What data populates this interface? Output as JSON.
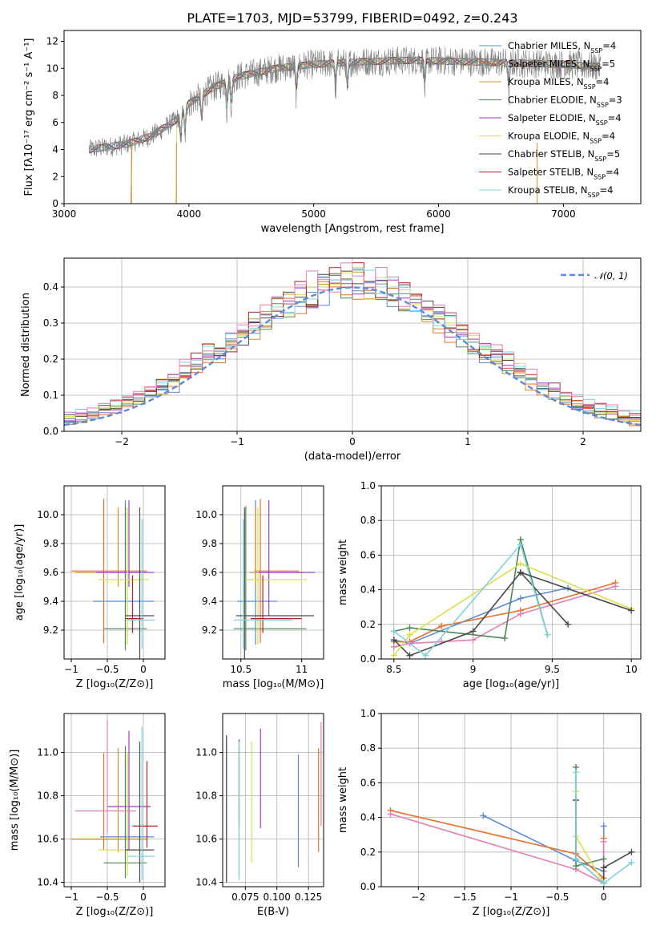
{
  "figure_title": "PLATE=1703, MJD=53799, FIBERID=0492, z=0.243",
  "colors": {
    "Chabrier MILES": "#5b8bd9",
    "Salpeter MILES": "#e8702a",
    "Kroupa MILES": "#c8902e",
    "Chabrier ELODIE": "#4e8a58",
    "Salpeter ELODIE": "#a43bc2",
    "Kroupa ELODIE": "#dede4a",
    "Chabrier STELIB": "#4a4a4a",
    "Salpeter STELIB": "#b22222",
    "Kroupa STELIB": "#7fd3dc",
    "Pink": "#e57fb4",
    "Data": "#7f7f7f",
    "Normal": "#5b8bd9"
  },
  "chart_data": [
    {
      "id": "spectrum",
      "type": "line",
      "title": "PLATE=1703, MJD=53799, FIBERID=0492, z=0.243",
      "xlabel": "wavelength [Angstrom, rest frame]",
      "ylabel": "Flux [fλ10⁻¹⁷ erg cm⁻² s⁻¹ A⁻¹]",
      "xlim": [
        3000,
        7620
      ],
      "ylim": [
        0,
        12.8
      ],
      "xticks": [
        3000,
        4000,
        5000,
        6000,
        7000
      ],
      "yticks": [
        0,
        2,
        4,
        6,
        8,
        10,
        12
      ],
      "legend_position": "right",
      "legend": [
        {
          "label": "Chabrier MILES, N",
          "sub": "SSP",
          "tail": "=4",
          "color": "#5b8bd9"
        },
        {
          "label": "Salpeter MILES, N",
          "sub": "SSP",
          "tail": "=5",
          "color": "#e8702a"
        },
        {
          "label": "Kroupa MILES, N",
          "sub": "SSP",
          "tail": "=4",
          "color": "#c8902e"
        },
        {
          "label": "Chabrier ELODIE, N",
          "sub": "SSP",
          "tail": "=3",
          "color": "#4e8a58"
        },
        {
          "label": "Salpeter ELODIE, N",
          "sub": "SSP",
          "tail": "=4",
          "color": "#a43bc2"
        },
        {
          "label": "Kroupa ELODIE, N",
          "sub": "SSP",
          "tail": "=4",
          "color": "#dede4a"
        },
        {
          "label": "Chabrier STELIB, N",
          "sub": "SSP",
          "tail": "=5",
          "color": "#4a4a4a"
        },
        {
          "label": "Salpeter STELIB, N",
          "sub": "SSP",
          "tail": "=4",
          "color": "#b22222"
        },
        {
          "label": "Kroupa STELIB, N",
          "sub": "SSP",
          "tail": "=4",
          "color": "#7fd3dc"
        }
      ],
      "continuum": [
        [
          3200,
          4.0
        ],
        [
          3500,
          4.4
        ],
        [
          3700,
          5.0
        ],
        [
          3900,
          6.2
        ],
        [
          4000,
          7.4
        ],
        [
          4200,
          8.6
        ],
        [
          4400,
          9.4
        ],
        [
          4700,
          10.0
        ],
        [
          5000,
          10.3
        ],
        [
          5400,
          10.5
        ],
        [
          5800,
          10.6
        ],
        [
          6200,
          10.5
        ],
        [
          6600,
          10.4
        ],
        [
          7000,
          10.3
        ],
        [
          7300,
          10.1
        ]
      ],
      "data_noise": 1.1,
      "data_xrange": [
        3200,
        7300
      ],
      "model_xrange": [
        3200,
        7300
      ],
      "model_cuts": [
        {
          "series": "Salpeter MILES",
          "start": 3540
        },
        {
          "series": "Kroupa MILES",
          "start": 3540
        },
        {
          "series": "Kroupa ELODIE",
          "start": 3900
        }
      ],
      "absorption_lines": [
        3934,
        3969,
        4102,
        4304,
        4341,
        4861,
        5175,
        5270,
        5890,
        6563
      ]
    },
    {
      "id": "residuals",
      "type": "histogram",
      "xlabel": "(data-model)/error",
      "ylabel": "Normed distribution",
      "xlim": [
        -2.5,
        2.5
      ],
      "ylim": [
        0,
        0.48
      ],
      "xticks": [
        -2,
        -1,
        0,
        1,
        2
      ],
      "yticks": [
        0.0,
        0.1,
        0.2,
        0.3,
        0.4
      ],
      "bin_width": 0.1,
      "legend_label": "𝒩(0, 1)",
      "legend_position": "top-right",
      "series_colors": [
        "#5b8bd9",
        "#e8702a",
        "#c8902e",
        "#4e8a58",
        "#a43bc2",
        "#dede4a",
        "#4a4a4a",
        "#b22222",
        "#7fd3dc",
        "#e57fb4"
      ],
      "normal_curve": {
        "mean": 0,
        "sigma": 1
      }
    },
    {
      "id": "age_vs_Z",
      "type": "errorbar",
      "xlabel": "Z [log₁₀(Z/Z⊙)]",
      "ylabel": "age  [log₁₀(age/yr)]",
      "xlim": [
        -1.1,
        0.3
      ],
      "ylim": [
        9.0,
        10.2
      ],
      "xticks": [
        -1.0,
        -0.5,
        0.0
      ],
      "yticks": [
        9.2,
        9.4,
        9.6,
        9.8,
        10.0
      ],
      "points": [
        {
          "series": "Chabrier MILES",
          "x": -0.25,
          "xerr": [
            0.45,
            0.4
          ],
          "y": 9.4,
          "yerr": [
            0.3,
            0.7
          ]
        },
        {
          "series": "Salpeter MILES",
          "x": -0.55,
          "xerr": [
            0.45,
            0.6
          ],
          "y": 9.61,
          "yerr": [
            0.5,
            0.5
          ]
        },
        {
          "series": "Kroupa MILES",
          "x": -0.35,
          "xerr": [
            0.6,
            0.35
          ],
          "y": 9.6,
          "yerr": [
            0.1,
            0.45
          ]
        },
        {
          "series": "Chabrier ELODIE",
          "x": -0.25,
          "xerr": [
            0.3,
            0.3
          ],
          "y": 9.21,
          "yerr": [
            0.15,
            0.85
          ]
        },
        {
          "series": "Salpeter ELODIE",
          "x": -0.2,
          "xerr": [
            0.45,
            0.35
          ],
          "y": 9.6,
          "yerr": [
            0.1,
            0.5
          ]
        },
        {
          "series": "Kroupa ELODIE",
          "x": -0.22,
          "xerr": [
            0.4,
            0.3
          ],
          "y": 9.55,
          "yerr": [
            0.45,
            0.5
          ]
        },
        {
          "series": "Chabrier STELIB",
          "x": -0.05,
          "xerr": [
            0.2,
            0.2
          ],
          "y": 9.3,
          "yerr": [
            0.35,
            0.75
          ]
        },
        {
          "series": "Salpeter STELIB",
          "x": -0.15,
          "xerr": [
            0.1,
            0.15
          ],
          "y": 9.28,
          "yerr": [
            0.1,
            0.3
          ]
        },
        {
          "series": "Kroupa STELIB",
          "x": -0.02,
          "xerr": [
            0.2,
            0.18
          ],
          "y": 9.27,
          "yerr": [
            0.2,
            0.7
          ]
        }
      ]
    },
    {
      "id": "age_vs_mass",
      "type": "errorbar",
      "xlabel": "mass [log₁₀(M/M⊙)]",
      "ylabel": "",
      "xlim": [
        10.35,
        11.18
      ],
      "ylim": [
        9.0,
        10.2
      ],
      "xticks": [
        10.5,
        11.0
      ],
      "yticks": [
        9.2,
        9.4,
        9.6,
        9.8,
        10.0
      ],
      "points": [
        {
          "series": "Chabrier MILES",
          "x": 10.62,
          "xerr": [
            0.15,
            0.18
          ],
          "y": 9.4,
          "yerr": [
            0.3,
            0.7
          ]
        },
        {
          "series": "Salpeter MILES",
          "x": 10.66,
          "xerr": [
            0.05,
            0.32
          ],
          "y": 9.61,
          "yerr": [
            0.5,
            0.5
          ]
        },
        {
          "series": "Kroupa MILES",
          "x": 10.62,
          "xerr": [
            0.05,
            0.4
          ],
          "y": 9.6,
          "yerr": [
            0.1,
            0.45
          ]
        },
        {
          "series": "Chabrier ELODIE",
          "x": 10.54,
          "xerr": [
            0.1,
            0.5
          ],
          "y": 9.21,
          "yerr": [
            0.15,
            0.85
          ]
        },
        {
          "series": "Salpeter ELODIE",
          "x": 10.73,
          "xerr": [
            0.1,
            0.38
          ],
          "y": 9.6,
          "yerr": [
            0.3,
            0.5
          ]
        },
        {
          "series": "Kroupa ELODIE",
          "x": 10.64,
          "xerr": [
            0.1,
            0.4
          ],
          "y": 9.55,
          "yerr": [
            0.45,
            0.5
          ]
        },
        {
          "series": "Chabrier STELIB",
          "x": 10.53,
          "xerr": [
            0.07,
            0.57
          ],
          "y": 9.3,
          "yerr": [
            0.35,
            0.75
          ]
        },
        {
          "series": "Salpeter STELIB",
          "x": 10.68,
          "xerr": [
            0.1,
            0.32
          ],
          "y": 9.28,
          "yerr": [
            0.1,
            0.3
          ]
        },
        {
          "series": "Kroupa STELIB",
          "x": 10.52,
          "xerr": [
            0.08,
            0.4
          ],
          "y": 9.27,
          "yerr": [
            0.2,
            0.7
          ]
        }
      ]
    },
    {
      "id": "weight_vs_age",
      "type": "line",
      "xlabel": "age  [log₁₀(age/yr)]",
      "ylabel": "mass weight",
      "xlim": [
        8.42,
        10.06
      ],
      "ylim": [
        0,
        1.0
      ],
      "xticks": [
        8.5,
        9.0,
        9.5,
        10.0
      ],
      "yticks": [
        0.0,
        0.2,
        0.4,
        0.6,
        0.8,
        1.0
      ],
      "series": [
        {
          "name": "Chabrier MILES",
          "x": [
            8.5,
            8.6,
            9.3,
            9.6
          ],
          "y": [
            0.11,
            0.09,
            0.35,
            0.41
          ]
        },
        {
          "name": "Salpeter MILES",
          "x": [
            8.5,
            8.6,
            8.8,
            9.3,
            9.9
          ],
          "y": [
            0.1,
            0.1,
            0.19,
            0.28,
            0.44
          ]
        },
        {
          "name": "Pink",
          "x": [
            8.5,
            8.6,
            8.8,
            9.0,
            9.3,
            9.9
          ],
          "y": [
            0.07,
            0.09,
            0.1,
            0.11,
            0.26,
            0.42
          ]
        },
        {
          "name": "Chabrier ELODIE",
          "x": [
            8.5,
            8.6,
            9.2,
            9.3,
            9.47
          ],
          "y": [
            0.16,
            0.18,
            0.12,
            0.69,
            0.14
          ]
        },
        {
          "name": "Chabrier STELIB",
          "x": [
            8.5,
            8.6,
            9.0,
            9.3,
            9.6
          ],
          "y": [
            0.11,
            0.02,
            0.16,
            0.5,
            0.2
          ]
        },
        {
          "name": "Kroupa ELODIE",
          "x": [
            8.5,
            8.6,
            9.3,
            10.0
          ],
          "y": [
            0.02,
            0.14,
            0.55,
            0.29
          ]
        },
        {
          "name": "Kroupa STELIB",
          "x": [
            8.5,
            8.7,
            9.3,
            9.47
          ],
          "y": [
            0.16,
            0.02,
            0.66,
            0.14
          ]
        },
        {
          "name": "Chabrier STELIB",
          "x": [
            9.3,
            10.0
          ],
          "y": [
            0.5,
            0.28
          ]
        }
      ]
    },
    {
      "id": "mass_vs_Z",
      "type": "errorbar",
      "xlabel": "Z [log₁₀(Z/Z⊙)]",
      "ylabel": "mass [log₁₀(M/M⊙)]",
      "xlim": [
        -1.1,
        0.3
      ],
      "ylim": [
        10.38,
        11.18
      ],
      "xticks": [
        -1.0,
        -0.5,
        0.0
      ],
      "yticks": [
        10.4,
        10.6,
        10.8,
        11.0
      ],
      "points": [
        {
          "series": "Chabrier MILES",
          "x": -0.25,
          "xerr": [
            0.35,
            0.4
          ],
          "y": 10.61,
          "yerr": [
            0.1,
            0.35
          ]
        },
        {
          "series": "Salpeter MILES",
          "x": -0.55,
          "xerr": [
            0.45,
            0.6
          ],
          "y": 10.6,
          "yerr": [
            0.05,
            0.4
          ]
        },
        {
          "series": "Kroupa MILES",
          "x": -0.35,
          "xerr": [
            0.6,
            0.35
          ],
          "y": 10.6,
          "yerr": [
            0.06,
            0.42
          ]
        },
        {
          "series": "Chabrier ELODIE",
          "x": -0.25,
          "xerr": [
            0.3,
            0.3
          ],
          "y": 10.49,
          "yerr": [
            0.07,
            0.54
          ]
        },
        {
          "series": "Salpeter ELODIE",
          "x": -0.2,
          "xerr": [
            0.3,
            0.3
          ],
          "y": 10.75,
          "yerr": [
            0.2,
            0.35
          ]
        },
        {
          "series": "Kroupa ELODIE",
          "x": -0.22,
          "xerr": [
            0.4,
            0.3
          ],
          "y": 10.55,
          "yerr": [
            0.12,
            0.45
          ]
        },
        {
          "series": "Chabrier STELIB",
          "x": -0.05,
          "xerr": [
            0.2,
            0.2
          ],
          "y": 10.55,
          "yerr": [
            0.15,
            0.5
          ]
        },
        {
          "series": "Salpeter STELIB",
          "x": 0.05,
          "xerr": [
            0.2,
            0.15
          ],
          "y": 10.66,
          "yerr": [
            0.1,
            0.3
          ]
        },
        {
          "series": "Kroupa STELIB",
          "x": -0.02,
          "xerr": [
            0.2,
            0.18
          ],
          "y": 10.52,
          "yerr": [
            0.11,
            0.6
          ]
        },
        {
          "series": "Pink",
          "x": -0.5,
          "xerr": [
            0.45,
            0.4
          ],
          "y": 10.73,
          "yerr": [
            0.1,
            0.42
          ]
        }
      ]
    },
    {
      "id": "mass_vs_ebv",
      "type": "errorbar",
      "xlabel": "E(B-V)",
      "ylabel": "",
      "xlim": [
        0.057,
        0.137
      ],
      "ylim": [
        10.38,
        11.18
      ],
      "xticks": [
        0.075,
        0.1,
        0.125
      ],
      "xtick_labels": [
        "0.075",
        "0.100",
        "0.125"
      ],
      "yticks": [
        10.4,
        10.6,
        10.8,
        11.0
      ],
      "points": [
        {
          "series": "Chabrier MILES",
          "x": 0.117,
          "y": 10.73,
          "yerr": [
            0.26,
            0.26
          ]
        },
        {
          "series": "Salpeter MILES",
          "x": 0.133,
          "y": 10.78,
          "yerr": [
            0.24,
            0.24
          ]
        },
        {
          "series": "Kroupa MILES",
          "x": 0.06,
          "y": 10.73,
          "yerr": [
            0.33,
            0.33
          ]
        },
        {
          "series": "Chabrier ELODIE",
          "x": 0.07,
          "y": 10.73,
          "yerr": [
            0.3,
            0.3
          ]
        },
        {
          "series": "Salpeter ELODIE",
          "x": 0.087,
          "y": 10.88,
          "yerr": [
            0.23,
            0.23
          ]
        },
        {
          "series": "Kroupa ELODIE",
          "x": 0.08,
          "y": 10.77,
          "yerr": [
            0.28,
            0.28
          ]
        },
        {
          "series": "Chabrier STELIB",
          "x": 0.06,
          "y": 10.74,
          "yerr": [
            0.34,
            0.34
          ]
        },
        {
          "series": "Salpeter STELIB",
          "x": 0.07,
          "y": 10.86,
          "yerr": [
            0.2,
            0.2
          ]
        },
        {
          "series": "Kroupa STELIB",
          "x": 0.07,
          "y": 10.73,
          "yerr": [
            0.32,
            0.32
          ]
        },
        {
          "series": "Pink",
          "x": 0.135,
          "y": 10.9,
          "yerr": [
            0.24,
            0.24
          ]
        }
      ]
    },
    {
      "id": "weight_vs_Z",
      "type": "line",
      "xlabel": "Z [log₁₀(Z/Z⊙)]",
      "ylabel": "mass weight",
      "xlim": [
        -2.4,
        0.4
      ],
      "ylim": [
        0,
        1.0
      ],
      "xticks": [
        -2.0,
        -1.5,
        -1.0,
        -0.5,
        0.0
      ],
      "yticks": [
        0.0,
        0.2,
        0.4,
        0.6,
        0.8,
        1.0
      ],
      "series": [
        {
          "name": "Chabrier MILES",
          "x": [
            -1.3,
            -0.3,
            0.0,
            0.0
          ],
          "y": [
            0.41,
            0.15,
            0.09,
            0.35
          ]
        },
        {
          "name": "Salpeter MILES",
          "x": [
            -2.3,
            -0.3,
            0.0,
            0.0
          ],
          "y": [
            0.44,
            0.19,
            0.05,
            0.28
          ]
        },
        {
          "name": "Pink",
          "x": [
            -2.3,
            -0.3,
            0.0,
            0.0
          ],
          "y": [
            0.42,
            0.1,
            0.02,
            0.26
          ]
        },
        {
          "name": "Chabrier ELODIE",
          "x": [
            -0.3,
            -0.3,
            0.0
          ],
          "y": [
            0.69,
            0.12,
            0.16
          ]
        },
        {
          "name": "Kroupa ELODIE",
          "x": [
            -0.3,
            -0.3,
            0.0
          ],
          "y": [
            0.55,
            0.29,
            0.02
          ]
        },
        {
          "name": "Chabrier STELIB",
          "x": [
            -0.3,
            -0.3,
            0.0,
            0.0,
            0.3
          ],
          "y": [
            0.5,
            0.16,
            0.02,
            0.11,
            0.2
          ]
        },
        {
          "name": "Kroupa STELIB",
          "x": [
            -0.3,
            -0.3,
            0.0,
            0.3
          ],
          "y": [
            0.66,
            0.16,
            0.02,
            0.14
          ]
        }
      ]
    }
  ]
}
